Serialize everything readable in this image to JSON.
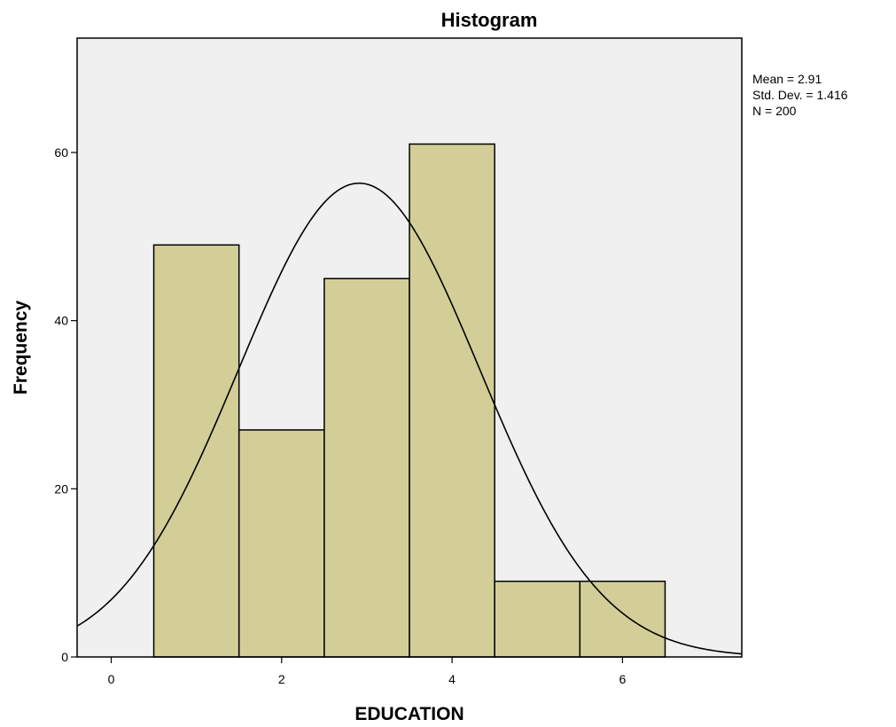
{
  "chart_data": {
    "type": "bar",
    "title": "Histogram",
    "xlabel": "EDUCATION",
    "ylabel": "Frequency",
    "xlim": [
      -0.4,
      7.4
    ],
    "ylim": [
      0,
      73.6
    ],
    "x_ticks": [
      0,
      2,
      4,
      6
    ],
    "y_ticks": [
      0,
      20,
      40,
      60
    ],
    "bins": [
      {
        "x0": 0.5,
        "x1": 1.5,
        "count": 49
      },
      {
        "x0": 1.5,
        "x1": 2.5,
        "count": 27
      },
      {
        "x0": 2.5,
        "x1": 3.5,
        "count": 45
      },
      {
        "x0": 3.5,
        "x1": 4.5,
        "count": 61
      },
      {
        "x0": 4.5,
        "x1": 5.5,
        "count": 9
      },
      {
        "x0": 5.5,
        "x1": 6.5,
        "count": 9
      }
    ],
    "normal_curve": {
      "mean": 2.91,
      "std_dev": 1.416,
      "n": 200,
      "bin_width": 1
    },
    "stats_lines": [
      "Mean = 2.91",
      "Std. Dev. = 1.416",
      "N = 200"
    ],
    "grid": false,
    "colors": {
      "plot_background": "#f0f0f0",
      "bar_fill": "#d3ce97",
      "bar_stroke": "#000000",
      "curve": "#000000",
      "frame": "#000000"
    }
  }
}
